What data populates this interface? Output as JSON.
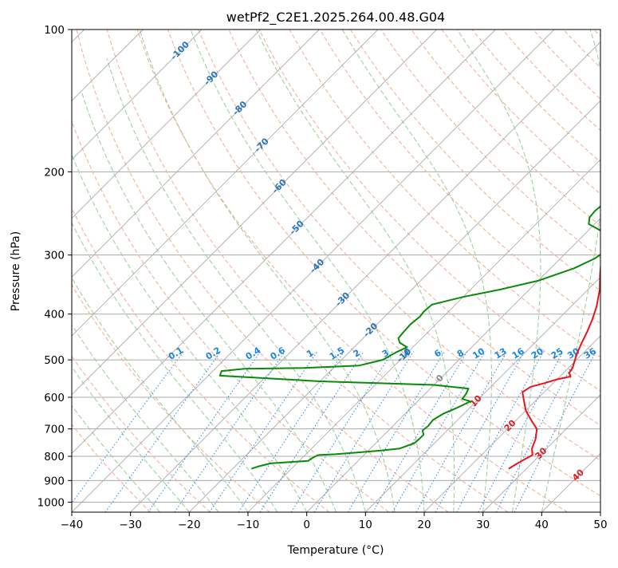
{
  "chart_data": {
    "type": "line",
    "title": "wetPf2_C2E1.2025.264.00.48.G04",
    "xlabel": "Temperature (°C)",
    "ylabel": "Pressure (hPa)",
    "xlim": [
      -40,
      50
    ],
    "ylim": [
      1050,
      100
    ],
    "y_scale": "log",
    "grid": true,
    "x_ticks": [
      "−40",
      "−30",
      "−20",
      "−10",
      "0",
      "10",
      "20",
      "30",
      "40",
      "50"
    ],
    "y_ticks": [
      "100",
      "200",
      "300",
      "400",
      "500",
      "600",
      "700",
      "800",
      "900",
      "1000"
    ],
    "colors": {
      "temperature": "#e8141a",
      "dewpoint": "#0a8a0a",
      "isotherm": "#aaaaaa",
      "dry_adiabat": "#f4b09a",
      "moist_adiabat": "#9fd09f",
      "mixing_ratio": "#3a8ee6",
      "isotherm_label": "#2a74b8",
      "mixing_label": "#1a86e0",
      "adiabat_label": "#d82020"
    },
    "series": [
      {
        "key": "temperature",
        "points": [
          [
            27,
            850
          ],
          [
            27.5,
            830
          ],
          [
            28.7,
            795
          ],
          [
            27.5,
            770
          ],
          [
            26.5,
            735
          ],
          [
            25,
            700
          ],
          [
            22.5,
            670
          ],
          [
            20,
            640
          ],
          [
            18,
            610
          ],
          [
            16.3,
            585
          ],
          [
            16.8,
            570
          ],
          [
            18.5,
            560
          ],
          [
            20,
            550
          ],
          [
            21.8,
            542
          ],
          [
            21,
            533
          ],
          [
            20.7,
            520
          ],
          [
            20,
            505
          ],
          [
            19,
            485
          ],
          [
            18,
            460
          ],
          [
            17,
            435
          ],
          [
            15.8,
            410
          ],
          [
            14.3,
            385
          ],
          [
            12,
            355
          ],
          [
            9.5,
            330
          ],
          [
            7.5,
            310
          ],
          [
            6.2,
            295
          ],
          [
            5.6,
            278
          ],
          [
            5.3,
            260
          ],
          [
            5.1,
            245
          ],
          [
            4.8,
            228
          ],
          [
            4.8,
            212
          ],
          [
            4.4,
            198
          ],
          [
            3.6,
            185
          ],
          [
            2.7,
            175
          ],
          [
            2.2,
            165
          ],
          [
            2.6,
            157
          ],
          [
            3.4,
            152
          ],
          [
            4.6,
            148
          ],
          [
            5.2,
            142
          ],
          [
            5.3,
            137
          ],
          [
            4.9,
            131
          ],
          [
            4.7,
            124
          ],
          [
            5.2,
            119
          ],
          [
            5.2,
            115
          ],
          [
            4.8,
            111
          ],
          [
            5,
            107
          ],
          [
            6,
            103
          ],
          [
            7.8,
            100
          ]
        ]
      },
      {
        "key": "dewpoint",
        "points": [
          [
            -16.8,
            850
          ],
          [
            -16,
            840
          ],
          [
            -14.5,
            828
          ],
          [
            -11,
            822
          ],
          [
            -8.5,
            818
          ],
          [
            -8.3,
            808
          ],
          [
            -8,
            800
          ],
          [
            -7.7,
            795
          ],
          [
            -5,
            792
          ],
          [
            -2,
            786
          ],
          [
            2,
            778
          ],
          [
            5,
            770
          ],
          [
            6.6,
            750
          ],
          [
            6.7,
            735
          ],
          [
            6.7,
            720
          ],
          [
            5.8,
            705
          ],
          [
            6,
            690
          ],
          [
            5.8,
            670
          ],
          [
            6.5,
            650
          ],
          [
            7.8,
            632
          ],
          [
            9,
            612
          ],
          [
            7.2,
            605
          ],
          [
            7,
            590
          ],
          [
            6.5,
            575
          ],
          [
            0,
            565
          ],
          [
            -20,
            555
          ],
          [
            -38,
            540
          ],
          [
            -38.5,
            528
          ],
          [
            -35,
            522
          ],
          [
            -25,
            520
          ],
          [
            -16,
            514
          ],
          [
            -13,
            500
          ],
          [
            -12,
            482
          ],
          [
            -11,
            470
          ],
          [
            -13,
            460
          ],
          [
            -14,
            450
          ],
          [
            -14.2,
            435
          ],
          [
            -14.3,
            420
          ],
          [
            -14,
            405
          ],
          [
            -14.2,
            395
          ],
          [
            -14,
            382
          ],
          [
            -10,
            368
          ],
          [
            -5,
            355
          ],
          [
            0,
            340
          ],
          [
            4,
            320
          ],
          [
            5.9,
            305
          ],
          [
            6.5,
            292
          ],
          [
            4.8,
            278
          ],
          [
            2,
            266
          ],
          [
            -1,
            258
          ],
          [
            -2,
            250
          ],
          [
            -2.2,
            242
          ],
          [
            -2,
            236
          ],
          [
            -2.2,
            225
          ],
          [
            -2.3,
            215
          ],
          [
            -1.6,
            208
          ],
          [
            -1.2,
            199
          ],
          [
            -2,
            192
          ],
          [
            -2.5,
            186
          ],
          [
            -3,
            180
          ],
          [
            -3.6,
            173
          ],
          [
            -4.6,
            165
          ],
          [
            -4.2,
            157
          ],
          [
            -3.5,
            152
          ],
          [
            -3.1,
            148
          ],
          [
            -3.7,
            142
          ],
          [
            -4,
            136
          ],
          [
            -3.7,
            131
          ],
          [
            -3.8,
            125
          ],
          [
            -3.5,
            119
          ],
          [
            -3.3,
            115
          ],
          [
            -2.6,
            111
          ],
          [
            -1.5,
            107
          ],
          [
            -0.5,
            103
          ],
          [
            0.5,
            100
          ]
        ]
      }
    ],
    "isotherm_labels": [
      "-100",
      "-90",
      "-80",
      "-70",
      "-60",
      "-50",
      "-40",
      "-30",
      "-20",
      "-10",
      "0"
    ],
    "mixing_ratio_labels": [
      "0.1",
      "0.2",
      "0.4",
      "0.6",
      "1",
      "1.5",
      "2",
      "3",
      "4",
      "6",
      "8",
      "10",
      "13",
      "16",
      "20",
      "25",
      "30",
      "36"
    ],
    "dry_adiabat_labels": [
      "10",
      "20",
      "30",
      "40"
    ]
  }
}
